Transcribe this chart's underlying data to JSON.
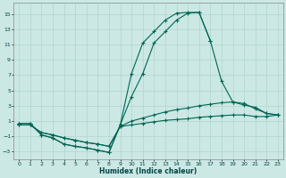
{
  "xlabel": "Humidex (Indice chaleur)",
  "bg_color": "#cce8e4",
  "grid_color": "#b0d4cc",
  "line_color": "#006655",
  "xlim": [
    -0.5,
    23.5
  ],
  "ylim": [
    -4,
    16.5
  ],
  "xticks": [
    0,
    1,
    2,
    3,
    4,
    5,
    6,
    7,
    8,
    9,
    10,
    11,
    12,
    13,
    14,
    15,
    16,
    17,
    18,
    19,
    20,
    21,
    22,
    23
  ],
  "yticks": [
    -3,
    -1,
    1,
    3,
    5,
    7,
    9,
    11,
    13,
    15
  ],
  "lines": [
    {
      "x": [
        0,
        1,
        2,
        3,
        4,
        5,
        6,
        7,
        8,
        9,
        10,
        11,
        12,
        13,
        14,
        15,
        16,
        17
      ],
      "y": [
        0.7,
        0.7,
        -0.8,
        -1.2,
        -2.0,
        -2.3,
        -2.5,
        -2.8,
        -3.1,
        0.5,
        7.2,
        11.2,
        12.7,
        14.2,
        15.1,
        15.2,
        15.2,
        11.5
      ]
    },
    {
      "x": [
        0,
        1,
        2,
        3,
        4,
        5,
        6,
        7,
        8,
        9,
        10,
        11,
        12,
        13,
        14,
        15,
        16,
        17,
        18,
        19,
        20,
        21,
        22,
        23
      ],
      "y": [
        0.7,
        0.7,
        -0.8,
        -1.2,
        -2.0,
        -2.3,
        -2.5,
        -2.8,
        -3.1,
        0.5,
        4.2,
        7.2,
        11.2,
        12.7,
        14.2,
        15.1,
        15.2,
        11.5,
        6.2,
        3.5,
        3.1,
        2.8,
        2.0,
        1.8
      ]
    },
    {
      "x": [
        0,
        1,
        2,
        3,
        4,
        5,
        6,
        7,
        8,
        9,
        10,
        11,
        12,
        13,
        14,
        15,
        16,
        17,
        18,
        19,
        20,
        21,
        22,
        23
      ],
      "y": [
        0.5,
        0.5,
        -0.5,
        -0.8,
        -1.2,
        -1.5,
        -1.8,
        -2.0,
        -2.3,
        0.3,
        1.0,
        1.4,
        1.8,
        2.2,
        2.5,
        2.7,
        3.0,
        3.2,
        3.4,
        3.5,
        3.3,
        2.6,
        2.0,
        1.8
      ]
    },
    {
      "x": [
        0,
        1,
        2,
        3,
        4,
        5,
        6,
        7,
        8,
        9,
        10,
        11,
        12,
        13,
        14,
        15,
        16,
        17,
        18,
        19,
        20,
        21,
        22,
        23
      ],
      "y": [
        0.5,
        0.5,
        -0.5,
        -0.8,
        -1.2,
        -1.5,
        -1.8,
        -2.0,
        -2.3,
        0.3,
        0.5,
        0.7,
        0.9,
        1.1,
        1.2,
        1.3,
        1.5,
        1.6,
        1.7,
        1.8,
        1.8,
        1.6,
        1.6,
        1.8
      ]
    }
  ]
}
